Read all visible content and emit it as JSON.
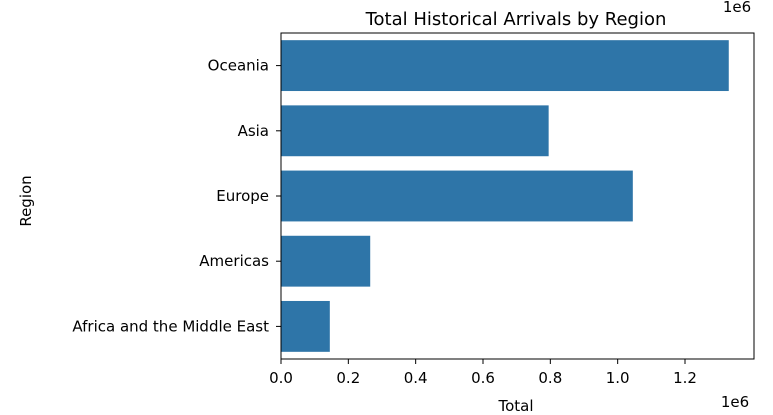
{
  "chart_data": {
    "type": "bar",
    "orientation": "horizontal",
    "title": "Total Historical Arrivals by Region",
    "xlabel": "Total",
    "ylabel": "Region",
    "offset_label": "1e6",
    "offset_label_x": "1e6",
    "categories": [
      "Oceania",
      "Asia",
      "Europe",
      "Americas",
      "Africa and the Middle East"
    ],
    "values": [
      1330000,
      795000,
      1045000,
      265000,
      145000
    ],
    "xlim": [
      0,
      1400000
    ],
    "xticks": [
      0,
      200000,
      400000,
      600000,
      800000,
      1000000,
      1200000
    ],
    "xtick_labels": [
      "0.0",
      "0.2",
      "0.4",
      "0.6",
      "0.8",
      "1.0",
      "1.2"
    ],
    "bar_color": "#2e75a8",
    "grid": false
  }
}
